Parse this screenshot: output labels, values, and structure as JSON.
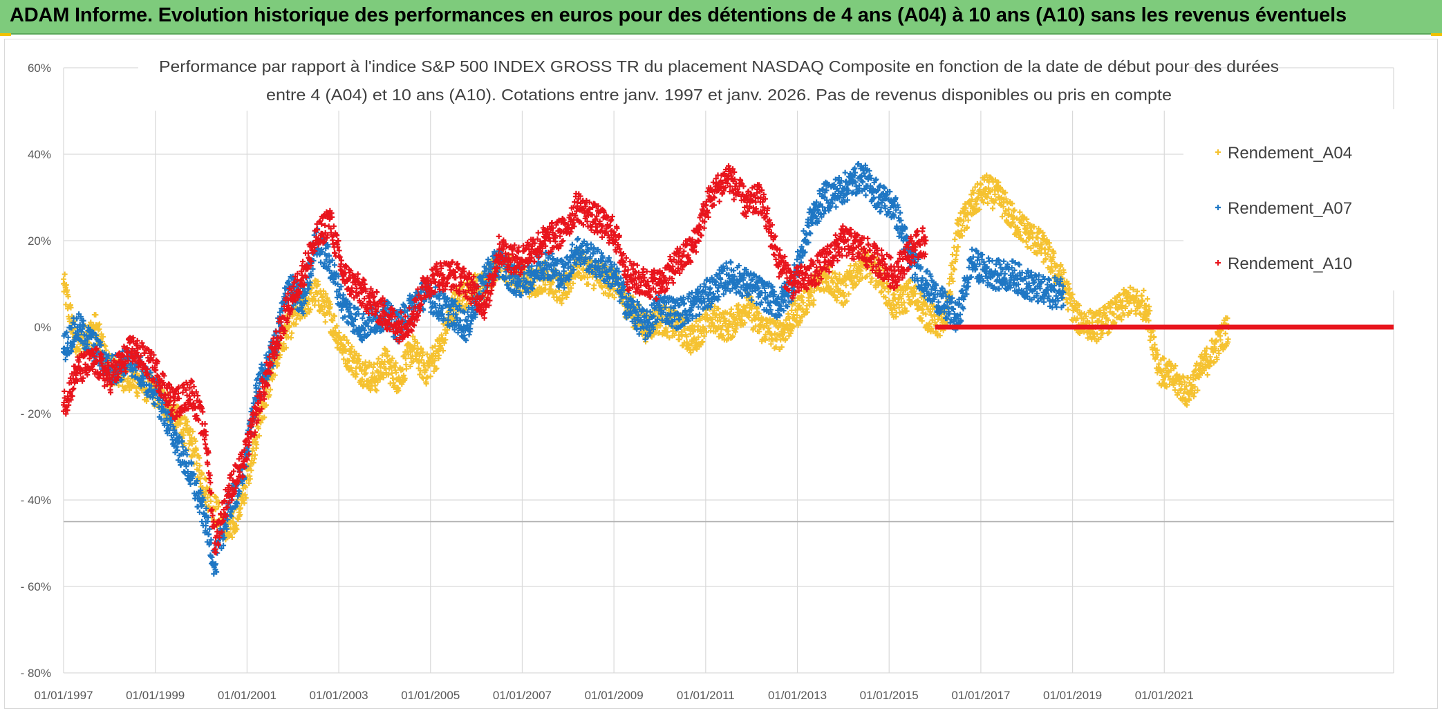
{
  "banner": {
    "title": "ADAM Informe. Evolution historique des performances en euros pour des détentions de 4 ans (A04) à 10 ans (A10) sans les revenus éventuels"
  },
  "chart_data": {
    "type": "scatter",
    "title_line1": "Performance par rapport à l'indice S&P 500 INDEX GROSS TR  du placement NASDAQ Composite en fonction de la date de début pour des durées",
    "title_line2": "entre 4 (A04) et 10 ans (A10). Cotations entre janv. 1997 et janv. 2026. Pas de revenus disponibles ou pris en compte",
    "xlabel": "",
    "ylabel": "",
    "xlim": [
      1997.0,
      2026.0
    ],
    "ylim": [
      -80,
      60
    ],
    "y_ticks": [
      60,
      40,
      20,
      0,
      -20,
      -40,
      -60,
      -80
    ],
    "y_tick_labels": [
      "60%",
      "40%",
      "20%",
      "0%",
      "- 20%",
      "- 40%",
      "- 60%",
      "- 80%"
    ],
    "x_ticks": [
      1997,
      1999,
      2001,
      2003,
      2005,
      2007,
      2009,
      2011,
      2013,
      2015,
      2017,
      2019,
      2021
    ],
    "x_tick_labels": [
      "01/01/1997",
      "01/01/1999",
      "01/01/2001",
      "01/01/2003",
      "01/01/2005",
      "01/01/2007",
      "01/01/2009",
      "01/01/2011",
      "01/01/2013",
      "01/01/2015",
      "01/01/2017",
      "01/01/2019",
      "01/01/2021"
    ],
    "reference_line_value": -45,
    "legend_position": "top-right",
    "series": [
      {
        "name": "Rendement_A04",
        "label": "Rendement_A04",
        "color": "#f5c231",
        "x": [
          1997.0,
          1997.3,
          1997.7,
          1998.0,
          1998.5,
          1999.0,
          1999.4,
          1999.8,
          2000.1,
          2000.3,
          2000.6,
          2000.9,
          2001.2,
          2001.6,
          2001.9,
          2002.2,
          2002.5,
          2002.8,
          2003.1,
          2003.5,
          2003.8,
          2004.0,
          2004.3,
          2004.6,
          2004.9,
          2005.2,
          2005.5,
          2005.8,
          2006.2,
          2006.5,
          2006.9,
          2007.2,
          2007.5,
          2007.9,
          2008.2,
          2008.6,
          2009.0,
          2009.3,
          2009.7,
          2010.0,
          2010.4,
          2010.7,
          2011.1,
          2011.5,
          2011.9,
          2012.2,
          2012.6,
          2012.9,
          2013.3,
          2013.6,
          2014.0,
          2014.4,
          2014.8,
          2015.1,
          2015.5,
          2015.8,
          2016.2,
          2016.5,
          2016.8,
          2017.1,
          2017.4,
          2017.7,
          2018.0,
          2018.4,
          2018.8,
          2019.1,
          2019.5,
          2019.9,
          2020.2,
          2020.6,
          2020.9,
          2021.2,
          2021.5,
          2021.8,
          2022.1,
          2022.4
        ],
        "y": [
          10,
          -5,
          0,
          -10,
          -12,
          -15,
          -20,
          -27,
          -38,
          -42,
          -48,
          -40,
          -25,
          -8,
          0,
          5,
          8,
          3,
          -5,
          -10,
          -12,
          -8,
          -12,
          -5,
          -10,
          -5,
          5,
          8,
          10,
          15,
          12,
          10,
          12,
          8,
          15,
          12,
          10,
          5,
          0,
          2,
          0,
          -3,
          2,
          0,
          5,
          0,
          -2,
          2,
          8,
          12,
          8,
          15,
          12,
          5,
          8,
          3,
          0,
          22,
          28,
          32,
          30,
          25,
          22,
          18,
          10,
          2,
          0,
          3,
          6,
          5,
          -10,
          -12,
          -15,
          -10,
          -5,
          0
        ]
      },
      {
        "name": "Rendement_A07",
        "label": "Rendement_A07",
        "color": "#1f77c4",
        "x": [
          1997.0,
          1997.3,
          1997.7,
          1998.0,
          1998.5,
          1999.0,
          1999.4,
          1999.8,
          2000.1,
          2000.3,
          2000.6,
          2000.9,
          2001.2,
          2001.6,
          2001.9,
          2002.2,
          2002.5,
          2002.8,
          2003.1,
          2003.5,
          2003.8,
          2004.0,
          2004.3,
          2004.6,
          2004.9,
          2005.2,
          2005.5,
          2005.8,
          2006.2,
          2006.5,
          2006.9,
          2007.2,
          2007.5,
          2007.9,
          2008.2,
          2008.6,
          2009.0,
          2009.3,
          2009.7,
          2010.0,
          2010.4,
          2010.7,
          2011.1,
          2011.5,
          2011.9,
          2012.2,
          2012.6,
          2012.9,
          2013.3,
          2013.6,
          2014.0,
          2014.4,
          2014.8,
          2015.1,
          2015.5,
          2015.8,
          2016.2,
          2016.5,
          2016.8,
          2017.1,
          2017.4,
          2017.7,
          2018.0,
          2018.4,
          2018.8
        ],
        "y": [
          -5,
          0,
          -5,
          -10,
          -8,
          -15,
          -25,
          -35,
          -45,
          -55,
          -42,
          -35,
          -15,
          -5,
          10,
          5,
          20,
          15,
          5,
          0,
          2,
          3,
          0,
          5,
          8,
          5,
          3,
          0,
          12,
          15,
          10,
          12,
          15,
          12,
          18,
          15,
          12,
          5,
          0,
          5,
          3,
          5,
          8,
          12,
          10,
          8,
          5,
          10,
          25,
          30,
          32,
          35,
          30,
          28,
          15,
          10,
          5,
          2,
          15,
          13,
          12,
          12,
          10,
          8,
          8
        ]
      },
      {
        "name": "Rendement_A10",
        "label": "Rendement_A10",
        "color": "#e8141c",
        "x": [
          1997.0,
          1997.3,
          1997.7,
          1998.0,
          1998.5,
          1999.0,
          1999.4,
          1999.8,
          2000.1,
          2000.3,
          2000.6,
          2000.9,
          2001.2,
          2001.6,
          2001.9,
          2002.2,
          2002.5,
          2002.8,
          2003.1,
          2003.5,
          2003.8,
          2004.0,
          2004.3,
          2004.6,
          2004.9,
          2005.2,
          2005.5,
          2005.8,
          2006.2,
          2006.5,
          2006.9,
          2007.2,
          2007.5,
          2007.9,
          2008.2,
          2008.6,
          2009.0,
          2009.3,
          2009.7,
          2010.0,
          2010.4,
          2010.7,
          2011.1,
          2011.5,
          2011.9,
          2012.2,
          2012.6,
          2012.9,
          2013.3,
          2013.6,
          2014.0,
          2014.4,
          2014.8,
          2015.1,
          2015.5,
          2015.8
        ],
        "y": [
          -18,
          -10,
          -8,
          -12,
          -5,
          -10,
          -18,
          -15,
          -25,
          -50,
          -38,
          -32,
          -20,
          -5,
          5,
          12,
          20,
          25,
          12,
          8,
          5,
          3,
          0,
          2,
          10,
          12,
          12,
          10,
          5,
          18,
          15,
          18,
          20,
          22,
          28,
          25,
          22,
          12,
          10,
          10,
          15,
          18,
          30,
          35,
          28,
          30,
          15,
          10,
          12,
          15,
          20,
          18,
          15,
          12,
          18,
          20
        ],
        "flat_segment": {
          "x_start": 2016.0,
          "x_end": 2026.0,
          "y": 0
        }
      }
    ]
  }
}
